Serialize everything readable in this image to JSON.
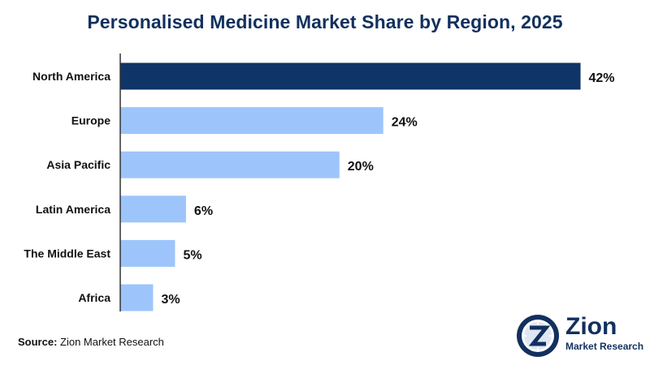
{
  "chart_data": {
    "type": "bar",
    "orientation": "horizontal",
    "title": "Personalised Medicine Market Share by Region, 2025",
    "categories": [
      "North America",
      "Europe",
      "Asia Pacific",
      "Latin America",
      "The Middle East",
      "Africa"
    ],
    "values": [
      42,
      24,
      20,
      6,
      5,
      3
    ],
    "value_labels": [
      "42%",
      "24%",
      "20%",
      "6%",
      "5%",
      "3%"
    ],
    "xlim": [
      0,
      43
    ],
    "grid": false,
    "colors": {
      "highlight": "#0f3468",
      "bar": "#9ec5fb",
      "axis": "#333333",
      "text": "#111111",
      "title": "#12305e"
    }
  },
  "source": {
    "label": "Source:",
    "text": "Zion Market Research"
  },
  "logo": {
    "name": "Zion",
    "subtitle": "Market Research",
    "icon": "zion-emblem-icon"
  }
}
